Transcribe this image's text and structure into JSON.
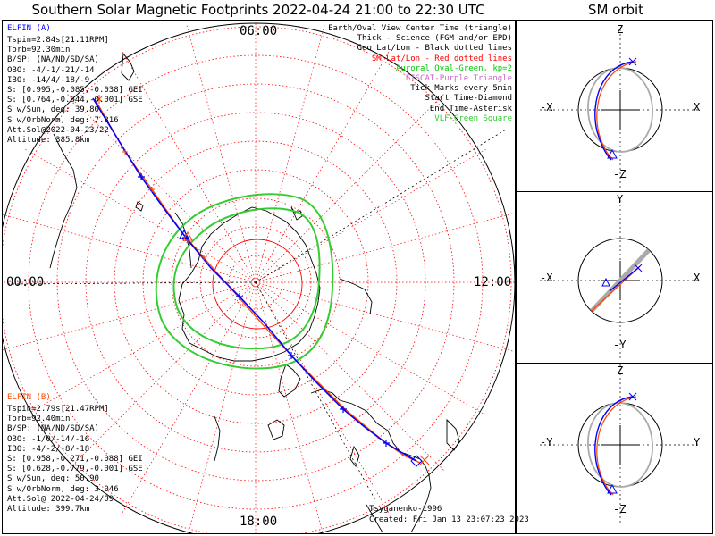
{
  "title": "Southern Solar Magnetic Footprints 2022-04-24 21:00 to 22:30 UTC",
  "orbit_title": "SM orbit",
  "mlt_labels": {
    "top": "06:00",
    "left": "00:00",
    "right": "12:00",
    "bottom": "18:00"
  },
  "elfin_a": {
    "name": "ELFIN (A)",
    "lines": [
      "Tspin=2.84s[21.11RPM]",
      "Torb=92.30min",
      "B/SP: (NA/ND/SD/SA)",
      "OBO: -4/-1/-21/-14",
      "IBO: -14/4/-18/-9",
      "S: [0.995,-0.085,-0.038] GEI",
      "S: [0.764,-0.644,-0.001] GSE",
      "S w/Sun, deg: 39.80",
      "S w/OrbNorm, deg: 7.316",
      "Att.Sol@2022-04-23/22",
      "Altitude: 385.8km"
    ]
  },
  "elfin_b": {
    "name": "ELFIN (B)",
    "lines": [
      "Tspin=2.79s[21.47RPM]",
      "Torb=92.40min",
      "B/SP: (NA/ND/SD/SA)",
      "OBO: -1/0/-14/-16",
      "IBO: -4/-2/-8/-18",
      "S: [0.958,-0.271,-0.088] GEI",
      "S: [0.628,-0.779,-0.001] GSE",
      "S w/Sun, deg: 50.90",
      "S w/OrbNorm, deg: 3.046",
      "Att.Sol@ 2022-04-24/09",
      "Altitude: 399.7km"
    ]
  },
  "legend": [
    {
      "text": "Earth/Oval View Center Time (triangle)",
      "color": "#000000"
    },
    {
      "text": "Thick - Science (FGM and/or EPD)",
      "color": "#000000"
    },
    {
      "text": "Geo Lat/Lon - Black dotted lines",
      "color": "#000000"
    },
    {
      "text": "SM Lat/Lon - Red dotted lines",
      "color": "#ff0000"
    },
    {
      "text": "Auroral Oval-Green, kp=2",
      "color": "#00cc00"
    },
    {
      "text": "EISCAT-Purple Triangle",
      "color": "#cc66cc"
    },
    {
      "text": "Tick Marks every 5min",
      "color": "#000000"
    },
    {
      "text": "Start Time-Diamond",
      "color": "#000000"
    },
    {
      "text": "End Time-Asterisk",
      "color": "#000000"
    },
    {
      "text": "VLF-Green Square",
      "color": "#33cc33"
    }
  ],
  "footer": {
    "model": "Tsyganenko-1996",
    "created": "Created: Fri Jan 13 23:07:23 2023"
  },
  "orbit_panels": [
    {
      "top": "Z",
      "bottom": "-Z",
      "left": "-X",
      "right": "X"
    },
    {
      "top": "Y",
      "bottom": "-Y",
      "left": "-X",
      "right": "X"
    },
    {
      "top": "Z",
      "bottom": "-Z",
      "left": "-Y",
      "right": "Y"
    }
  ],
  "chart_data": {
    "type": "polar-map",
    "series": [
      {
        "name": "ELFIN (A)",
        "color": "#0000ff"
      },
      {
        "name": "ELFIN (B)",
        "color": "#ff4500"
      }
    ]
  }
}
